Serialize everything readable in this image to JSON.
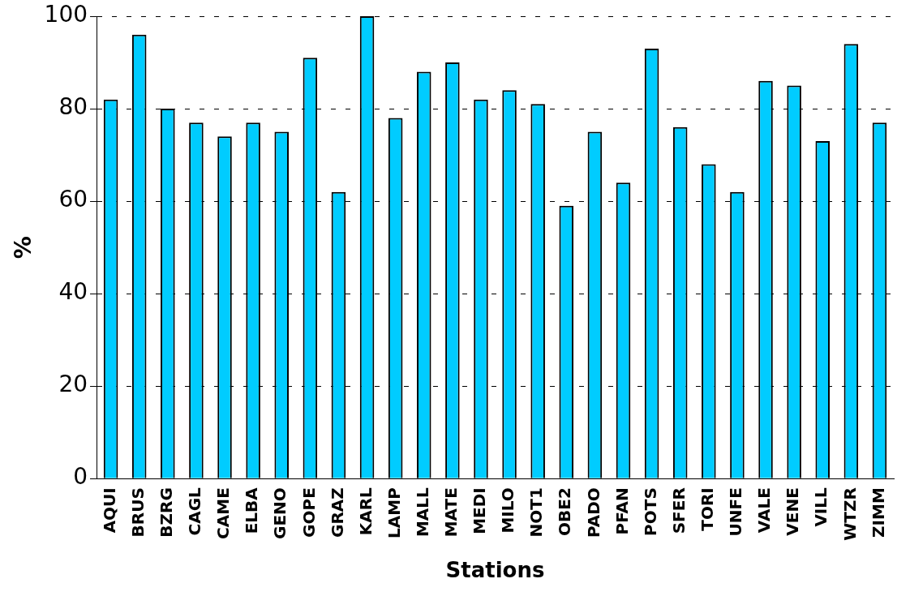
{
  "chart_data": {
    "type": "bar",
    "xlabel": "Stations",
    "ylabel": "%",
    "categories": [
      "AQUI",
      "BRUS",
      "BZRG",
      "CAGL",
      "CAME",
      "ELBA",
      "GENO",
      "GOPE",
      "GRAZ",
      "KARL",
      "LAMP",
      "MALL",
      "MATE",
      "MEDI",
      "MILO",
      "NOT1",
      "OBE2",
      "PADO",
      "PFAN",
      "POTS",
      "SFER",
      "TORI",
      "UNFE",
      "VALE",
      "VENE",
      "VILL",
      "WTZR",
      "ZIMM"
    ],
    "values": [
      82,
      96,
      80,
      77,
      74,
      77,
      75,
      91,
      62,
      100,
      78,
      88,
      90,
      82,
      84,
      81,
      59,
      75,
      64,
      93,
      76,
      68,
      62,
      86,
      85,
      73,
      94,
      77
    ],
    "color": "#00ccff",
    "ylim": [
      0,
      100
    ],
    "yticks": [
      0,
      20,
      40,
      60,
      80,
      100
    ],
    "grid": "y"
  }
}
